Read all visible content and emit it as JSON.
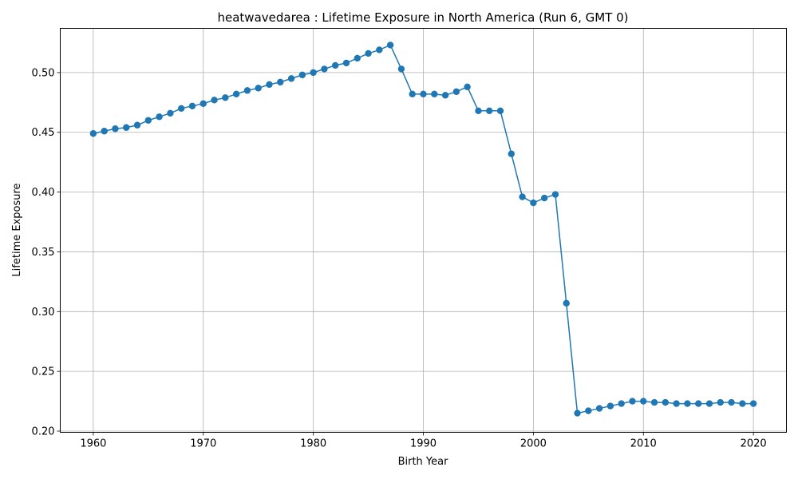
{
  "chart_data": {
    "type": "line",
    "title": "heatwavedarea : Lifetime Exposure in North America (Run 6, GMT 0)",
    "xlabel": "Birth Year",
    "ylabel": "Lifetime Exposure",
    "xlim": [
      1957,
      2023
    ],
    "ylim": [
      0.199,
      0.537
    ],
    "x_ticks": [
      1960,
      1970,
      1980,
      1990,
      2000,
      2010,
      2020
    ],
    "x_tick_labels": [
      "1960",
      "1970",
      "1980",
      "1990",
      "2000",
      "2010",
      "2020"
    ],
    "y_ticks": [
      0.2,
      0.25,
      0.3,
      0.35,
      0.4,
      0.45,
      0.5
    ],
    "y_tick_labels": [
      "0.20",
      "0.25",
      "0.30",
      "0.35",
      "0.40",
      "0.45",
      "0.50"
    ],
    "grid": true,
    "marker": "circle",
    "color": "#1f77b4",
    "series": [
      {
        "x": [
          1960,
          1961,
          1962,
          1963,
          1964,
          1965,
          1966,
          1967,
          1968,
          1969,
          1970,
          1971,
          1972,
          1973,
          1974,
          1975,
          1976,
          1977,
          1978,
          1979,
          1980,
          1981,
          1982,
          1983,
          1984,
          1985,
          1986,
          1987,
          1988,
          1989,
          1990,
          1991,
          1992,
          1993,
          1994,
          1995,
          1996,
          1997,
          1998,
          1999,
          2000,
          2001,
          2002,
          2003,
          2004,
          2005,
          2006,
          2007,
          2008,
          2009,
          2010,
          2011,
          2012,
          2013,
          2014,
          2015,
          2016,
          2017,
          2018,
          2019,
          2020
        ],
        "values": [
          0.449,
          0.451,
          0.453,
          0.454,
          0.456,
          0.46,
          0.463,
          0.466,
          0.47,
          0.472,
          0.474,
          0.477,
          0.479,
          0.482,
          0.485,
          0.487,
          0.49,
          0.492,
          0.495,
          0.498,
          0.5,
          0.503,
          0.506,
          0.508,
          0.512,
          0.516,
          0.519,
          0.523,
          0.503,
          0.482,
          0.482,
          0.482,
          0.481,
          0.484,
          0.488,
          0.468,
          0.468,
          0.468,
          0.432,
          0.396,
          0.391,
          0.395,
          0.398,
          0.307,
          0.215,
          0.217,
          0.219,
          0.221,
          0.223,
          0.225,
          0.225,
          0.224,
          0.224,
          0.223,
          0.223,
          0.223,
          0.223,
          0.224,
          0.224,
          0.223,
          0.223
        ]
      }
    ]
  }
}
